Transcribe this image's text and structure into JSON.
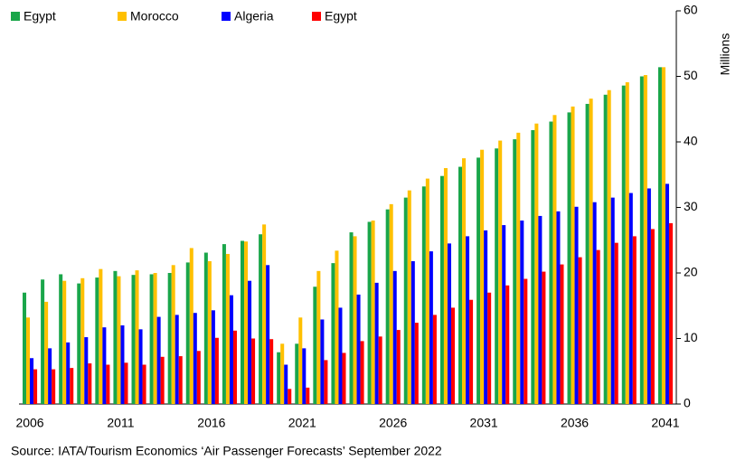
{
  "chart_data": {
    "type": "bar",
    "categories": [
      "2006",
      null,
      null,
      null,
      null,
      "2011",
      null,
      null,
      null,
      null,
      "2016",
      null,
      null,
      null,
      null,
      "2021",
      null,
      null,
      null,
      null,
      "2026",
      null,
      null,
      null,
      null,
      "2031",
      null,
      null,
      null,
      null,
      "2036",
      null,
      null,
      null,
      null,
      "2041"
    ],
    "series": [
      {
        "name": "Egypt",
        "color": "#1aa64a",
        "values": [
          17.0,
          19.0,
          19.8,
          18.4,
          19.3,
          20.3,
          19.7,
          19.8,
          20.0,
          21.6,
          23.1,
          24.4,
          24.9,
          25.9,
          7.9,
          9.2,
          17.9,
          21.5,
          26.2,
          27.8,
          29.7,
          31.5,
          33.2,
          34.8,
          36.2,
          37.6,
          39.0,
          40.4,
          41.8,
          43.1,
          44.5,
          45.8,
          47.2,
          48.6,
          50.0,
          51.4
        ]
      },
      {
        "name": "Morocco",
        "color": "#ffc000",
        "values": [
          13.2,
          15.6,
          18.8,
          19.2,
          20.6,
          19.5,
          20.4,
          20.0,
          21.2,
          23.8,
          21.8,
          22.9,
          24.8,
          27.4,
          9.2,
          13.2,
          20.3,
          23.4,
          25.6,
          28.0,
          30.5,
          32.6,
          34.4,
          36.0,
          37.5,
          38.8,
          40.2,
          41.4,
          42.8,
          44.1,
          45.4,
          46.6,
          47.9,
          49.1,
          50.2,
          51.4
        ]
      },
      {
        "name": "Algeria",
        "color": "#0000ff",
        "values": [
          7.0,
          8.5,
          9.4,
          10.2,
          11.7,
          12.0,
          11.4,
          13.3,
          13.6,
          13.9,
          14.3,
          16.6,
          18.8,
          21.2,
          6.0,
          8.5,
          12.9,
          14.7,
          16.7,
          18.5,
          20.3,
          21.8,
          23.3,
          24.5,
          25.6,
          26.5,
          27.3,
          28.0,
          28.7,
          29.4,
          30.1,
          30.8,
          31.5,
          32.2,
          32.9,
          33.6
        ]
      },
      {
        "name": "Egypt",
        "color": "#ff0000",
        "values": [
          5.3,
          5.3,
          5.5,
          6.2,
          6.0,
          6.3,
          6.0,
          7.2,
          7.3,
          8.1,
          10.1,
          11.2,
          10.0,
          9.9,
          2.3,
          2.5,
          6.7,
          7.8,
          9.6,
          10.3,
          11.3,
          12.4,
          13.6,
          14.7,
          15.9,
          17.0,
          18.1,
          19.1,
          20.2,
          21.3,
          22.4,
          23.5,
          24.6,
          25.6,
          26.7,
          27.6
        ]
      }
    ],
    "ylabel": "Millions",
    "ylim": [
      0,
      60
    ],
    "yticks": [
      0,
      10,
      20,
      30,
      40,
      50,
      60
    ],
    "yaxis_side": "right",
    "legend": "top-left",
    "source": "Source: IATA/Tourism Economics ‘Air Passenger Forecasts’ September 2022"
  }
}
